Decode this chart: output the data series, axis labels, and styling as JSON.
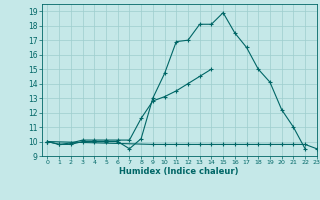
{
  "xlabel": "Humidex (Indice chaleur)",
  "xlim": [
    -0.5,
    23
  ],
  "ylim": [
    9,
    19.5
  ],
  "xticks": [
    0,
    1,
    2,
    3,
    4,
    5,
    6,
    7,
    8,
    9,
    10,
    11,
    12,
    13,
    14,
    15,
    16,
    17,
    18,
    19,
    20,
    21,
    22,
    23
  ],
  "yticks": [
    9,
    10,
    11,
    12,
    13,
    14,
    15,
    16,
    17,
    18,
    19
  ],
  "bg_color": "#c5e8e8",
  "line_color": "#006666",
  "grid_color": "#9ecece",
  "series": [
    {
      "x": [
        0,
        1,
        2,
        3,
        4,
        5,
        6,
        7,
        8,
        9,
        10,
        11,
        12,
        13,
        14,
        15,
        16,
        17,
        18,
        19,
        20,
        21,
        22
      ],
      "y": [
        10,
        9.8,
        9.8,
        10,
        10,
        10,
        10,
        9.5,
        10.2,
        13,
        14.7,
        16.9,
        17,
        18.1,
        18.1,
        18.9,
        17.5,
        16.5,
        15,
        14.1,
        12.2,
        11,
        9.5
      ]
    },
    {
      "x": [
        0,
        1,
        2,
        3,
        4,
        5,
        6,
        7,
        8,
        9,
        10,
        11,
        12,
        13,
        14
      ],
      "y": [
        10,
        9.8,
        9.9,
        10.1,
        10.1,
        10.1,
        10.1,
        10.1,
        11.6,
        12.8,
        13.1,
        13.5,
        14,
        14.5,
        15
      ]
    },
    {
      "x": [
        0,
        9,
        10,
        11,
        12,
        13,
        14,
        15,
        16,
        17,
        18,
        19,
        20,
        21,
        22,
        23
      ],
      "y": [
        10,
        9.8,
        9.8,
        9.8,
        9.8,
        9.8,
        9.8,
        9.8,
        9.8,
        9.8,
        9.8,
        9.8,
        9.8,
        9.8,
        9.8,
        9.5
      ]
    }
  ]
}
